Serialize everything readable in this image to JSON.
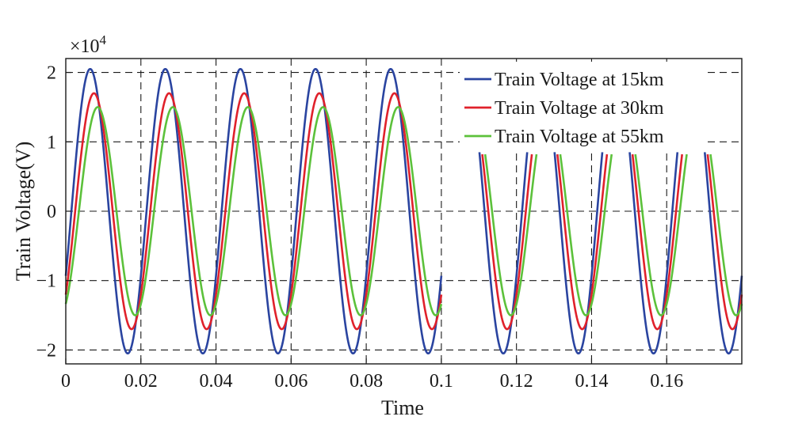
{
  "chart_data": {
    "type": "line",
    "title": "",
    "xlabel": "Time",
    "ylabel": "Train Voltage(V)",
    "y_multiplier_label": "×10",
    "y_multiplier_exponent": "4",
    "xlim": [
      0,
      0.18
    ],
    "ylim": [
      -2.2,
      2.2
    ],
    "x_ticks": [
      0,
      0.02,
      0.04,
      0.06,
      0.08,
      0.1,
      0.12,
      0.14,
      0.16
    ],
    "x_tick_labels": [
      "0",
      "0.02",
      "0.04",
      "0.06",
      "0.08",
      "0.1",
      "0.12",
      "0.14",
      "0.16"
    ],
    "y_ticks": [
      -2,
      -1,
      0,
      1,
      2
    ],
    "y_tick_labels": [
      "−2",
      "−1",
      "0",
      "1",
      "2"
    ],
    "grid": true,
    "grid_style": "dashed",
    "legend_position": "top-right",
    "frequency_hz": 50,
    "series": [
      {
        "name": "Train Voltage at 15km",
        "color": "#2a44a0",
        "amplitude": 2.05,
        "peak_times": [
          0.0065,
          0.0265,
          0.0465,
          0.0665,
          0.0865
        ],
        "trough_times": [
          0.0165,
          0.0365,
          0.0565,
          0.0765,
          0.0965,
          0.1165,
          0.1365,
          0.1565,
          0.1765
        ],
        "gap_segments_start": 0.1
      },
      {
        "name": "Train Voltage at 30km",
        "color": "#e0212b",
        "amplitude": 1.7,
        "peak_times": [
          0.0075,
          0.0275,
          0.0475,
          0.0675,
          0.0875
        ],
        "trough_times": [
          0.0175,
          0.0375,
          0.0575,
          0.0775,
          0.0975,
          0.1175,
          0.1375,
          0.1575,
          0.1775
        ],
        "gap_segments_start": 0.1
      },
      {
        "name": "Train Voltage at 55km",
        "color": "#5cc13b",
        "amplitude": 1.5,
        "peak_times": [
          0.0085,
          0.0285,
          0.0485,
          0.0685,
          0.0885
        ],
        "trough_times": [
          0.0185,
          0.0385,
          0.0585,
          0.0785,
          0.0985,
          0.1185,
          0.1385,
          0.1585,
          0.1785
        ],
        "gap_segments_start": 0.1
      }
    ]
  }
}
